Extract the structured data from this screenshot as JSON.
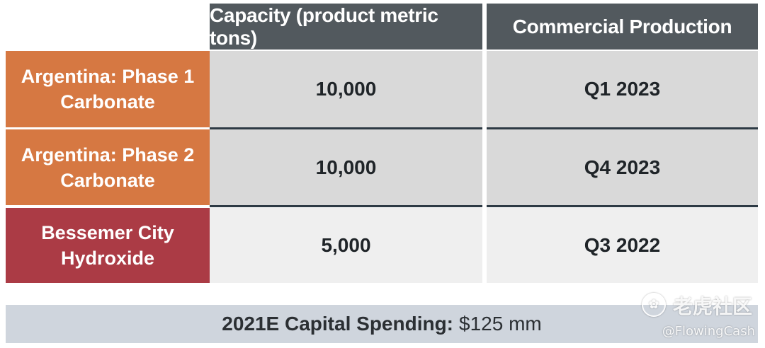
{
  "table": {
    "headers": {
      "capacity": "Capacity (product metric tons)",
      "commercial_production": "Commercial Production"
    },
    "rows": [
      {
        "label_line1": "Argentina: Phase 1",
        "label_line2": "Carbonate",
        "capacity": "10,000",
        "commercial_production": "Q1 2023",
        "label_color": "#d67842"
      },
      {
        "label_line1": "Argentina: Phase 2",
        "label_line2": "Carbonate",
        "capacity": "10,000",
        "commercial_production": "Q4 2023",
        "label_color": "#d67842"
      },
      {
        "label_line1": "Bessemer City",
        "label_line2": "Hydroxide",
        "capacity": "5,000",
        "commercial_production": "Q3 2022",
        "label_color": "#ab3b45"
      }
    ]
  },
  "footer": {
    "label": "2021E Capital Spending:",
    "value": "$125 mm"
  },
  "watermark": {
    "brand": "老虎社区",
    "handle": "@FlowingCash",
    "logo_icon": "tiger-logo-icon"
  }
}
